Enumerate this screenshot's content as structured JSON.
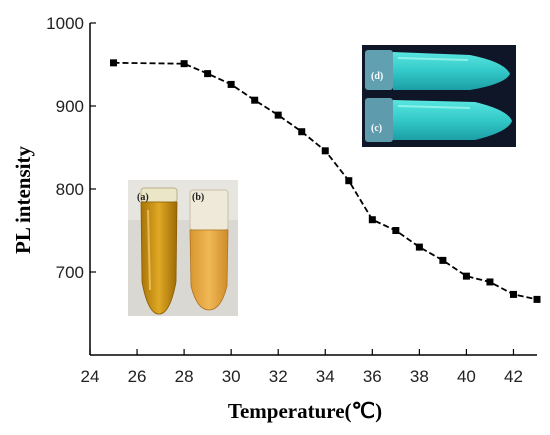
{
  "chart_data": {
    "type": "line",
    "xlabel": "Temperature(℃)",
    "ylabel": "PL intensity",
    "xlim": [
      24,
      43
    ],
    "ylim": [
      600,
      1000
    ],
    "xticks": [
      24,
      26,
      28,
      30,
      32,
      34,
      36,
      38,
      40,
      42
    ],
    "yticks": [
      700,
      800,
      900,
      1000
    ],
    "grid": false,
    "legend": "none",
    "marker": "square",
    "line_style": "dashed",
    "line_color": "#000000",
    "series": [
      {
        "x": [
          25,
          28,
          29,
          30,
          31,
          32,
          33,
          34,
          35,
          36,
          37,
          38,
          39,
          40,
          41,
          42,
          43
        ],
        "y": [
          952,
          951,
          939,
          926,
          907,
          889,
          869,
          846,
          810,
          763,
          750,
          730,
          714,
          695,
          688,
          673,
          667
        ]
      }
    ]
  },
  "insets": {
    "tubes_left": {
      "labels": [
        "(a)",
        "(b)"
      ],
      "colors": [
        "#c8920c",
        "#e3a53a"
      ]
    },
    "tubes_right": {
      "labels": [
        "(d)",
        "(c)"
      ],
      "colors": [
        "#3fd6d2",
        "#44cfcf"
      ]
    }
  }
}
